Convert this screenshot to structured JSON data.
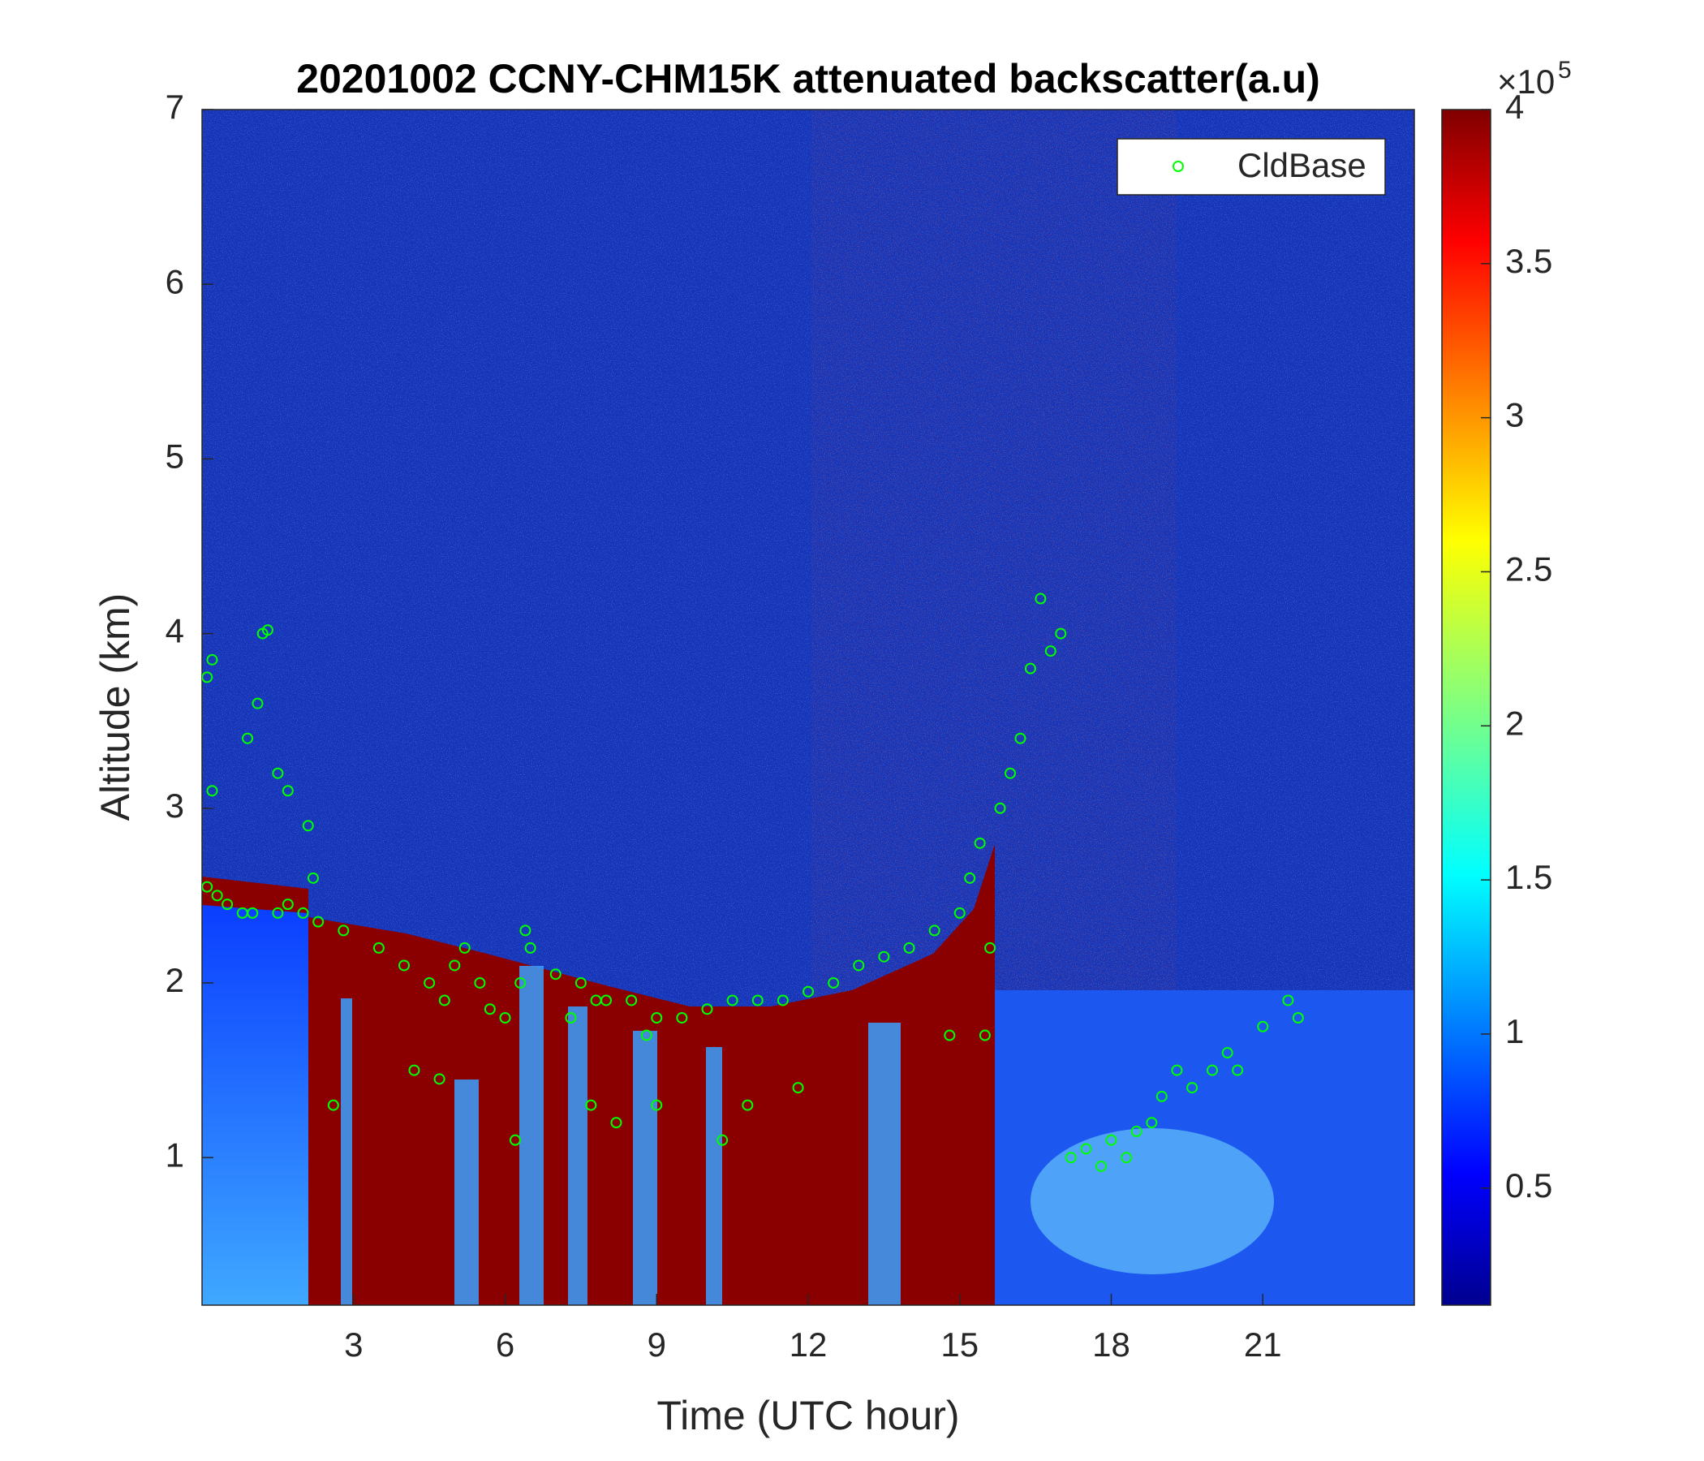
{
  "chart_data": {
    "type": "scatter",
    "title": "20201002 CCNY-CHM15K attenuated backscatter(a.u)",
    "x_label": "Time (UTC hour)",
    "y_label": "Altitude (km)",
    "xlim": [
      0,
      24
    ],
    "xticks": [
      3,
      6,
      9,
      12,
      15,
      18,
      21
    ],
    "ylim": [
      0.155,
      7
    ],
    "yticks": [
      1,
      2,
      3,
      4,
      5,
      6,
      7
    ],
    "colormap": "jet",
    "clim": [
      12000,
      400000
    ],
    "cticks": [
      {
        "value": 50000,
        "label": "0.5"
      },
      {
        "value": 100000,
        "label": "1"
      },
      {
        "value": 150000,
        "label": "1.5"
      },
      {
        "value": 200000,
        "label": "2"
      },
      {
        "value": 250000,
        "label": "2.5"
      },
      {
        "value": 300000,
        "label": "3"
      },
      {
        "value": 350000,
        "label": "3.5"
      },
      {
        "value": 400000,
        "label": "4"
      }
    ],
    "colorbar_multiplier": "×10",
    "colorbar_exponent": "5",
    "legend": "upper right",
    "series": [
      {
        "name": "CldBase",
        "color": "#00ff00",
        "x": [
          0.1,
          0.1,
          0.2,
          0.2,
          0.3,
          0.5,
          0.8,
          0.9,
          1.0,
          1.1,
          1.2,
          1.3,
          1.5,
          1.5,
          1.7,
          1.7,
          2.0,
          2.1,
          2.2,
          2.3,
          2.6,
          2.8,
          3.5,
          4.0,
          4.2,
          4.5,
          4.7,
          4.8,
          5.0,
          5.2,
          5.5,
          5.7,
          6.0,
          6.2,
          6.3,
          6.4,
          6.5,
          7.0,
          7.3,
          7.5,
          7.7,
          7.8,
          8.0,
          8.2,
          8.5,
          8.8,
          9.0,
          9.0,
          9.5,
          10.0,
          10.3,
          10.5,
          10.8,
          11.0,
          11.5,
          11.8,
          12.0,
          12.5,
          13.0,
          13.5,
          14.0,
          14.5,
          14.8,
          15.0,
          15.2,
          15.4,
          15.5,
          15.6,
          15.8,
          16.0,
          16.2,
          16.4,
          16.6,
          16.8,
          17.0,
          17.2,
          17.5,
          17.8,
          18.0,
          18.3,
          18.5,
          18.8,
          19.0,
          19.3,
          19.6,
          20.0,
          20.3,
          20.5,
          21.0,
          21.5,
          21.7
        ],
        "values": [
          2.55,
          3.75,
          3.85,
          3.1,
          2.5,
          2.45,
          2.4,
          3.4,
          2.4,
          3.6,
          4.0,
          4.02,
          2.4,
          3.2,
          2.45,
          3.1,
          2.4,
          2.9,
          2.6,
          2.35,
          1.3,
          2.3,
          2.2,
          2.1,
          1.5,
          2.0,
          1.45,
          1.9,
          2.1,
          2.2,
          2.0,
          1.85,
          1.8,
          1.1,
          2.0,
          2.3,
          2.2,
          2.05,
          1.8,
          2.0,
          1.3,
          1.9,
          1.9,
          1.2,
          1.9,
          1.7,
          1.8,
          1.3,
          1.8,
          1.85,
          1.1,
          1.9,
          1.3,
          1.9,
          1.9,
          1.4,
          1.95,
          2.0,
          2.1,
          2.15,
          2.2,
          2.3,
          1.7,
          2.4,
          2.6,
          2.8,
          1.7,
          2.2,
          3.0,
          3.2,
          3.4,
          3.8,
          4.2,
          3.9,
          4.0,
          1.0,
          1.05,
          0.95,
          1.1,
          1.0,
          1.15,
          1.2,
          1.35,
          1.5,
          1.4,
          1.5,
          1.6,
          1.5,
          1.75,
          1.9,
          1.8
        ]
      }
    ]
  }
}
